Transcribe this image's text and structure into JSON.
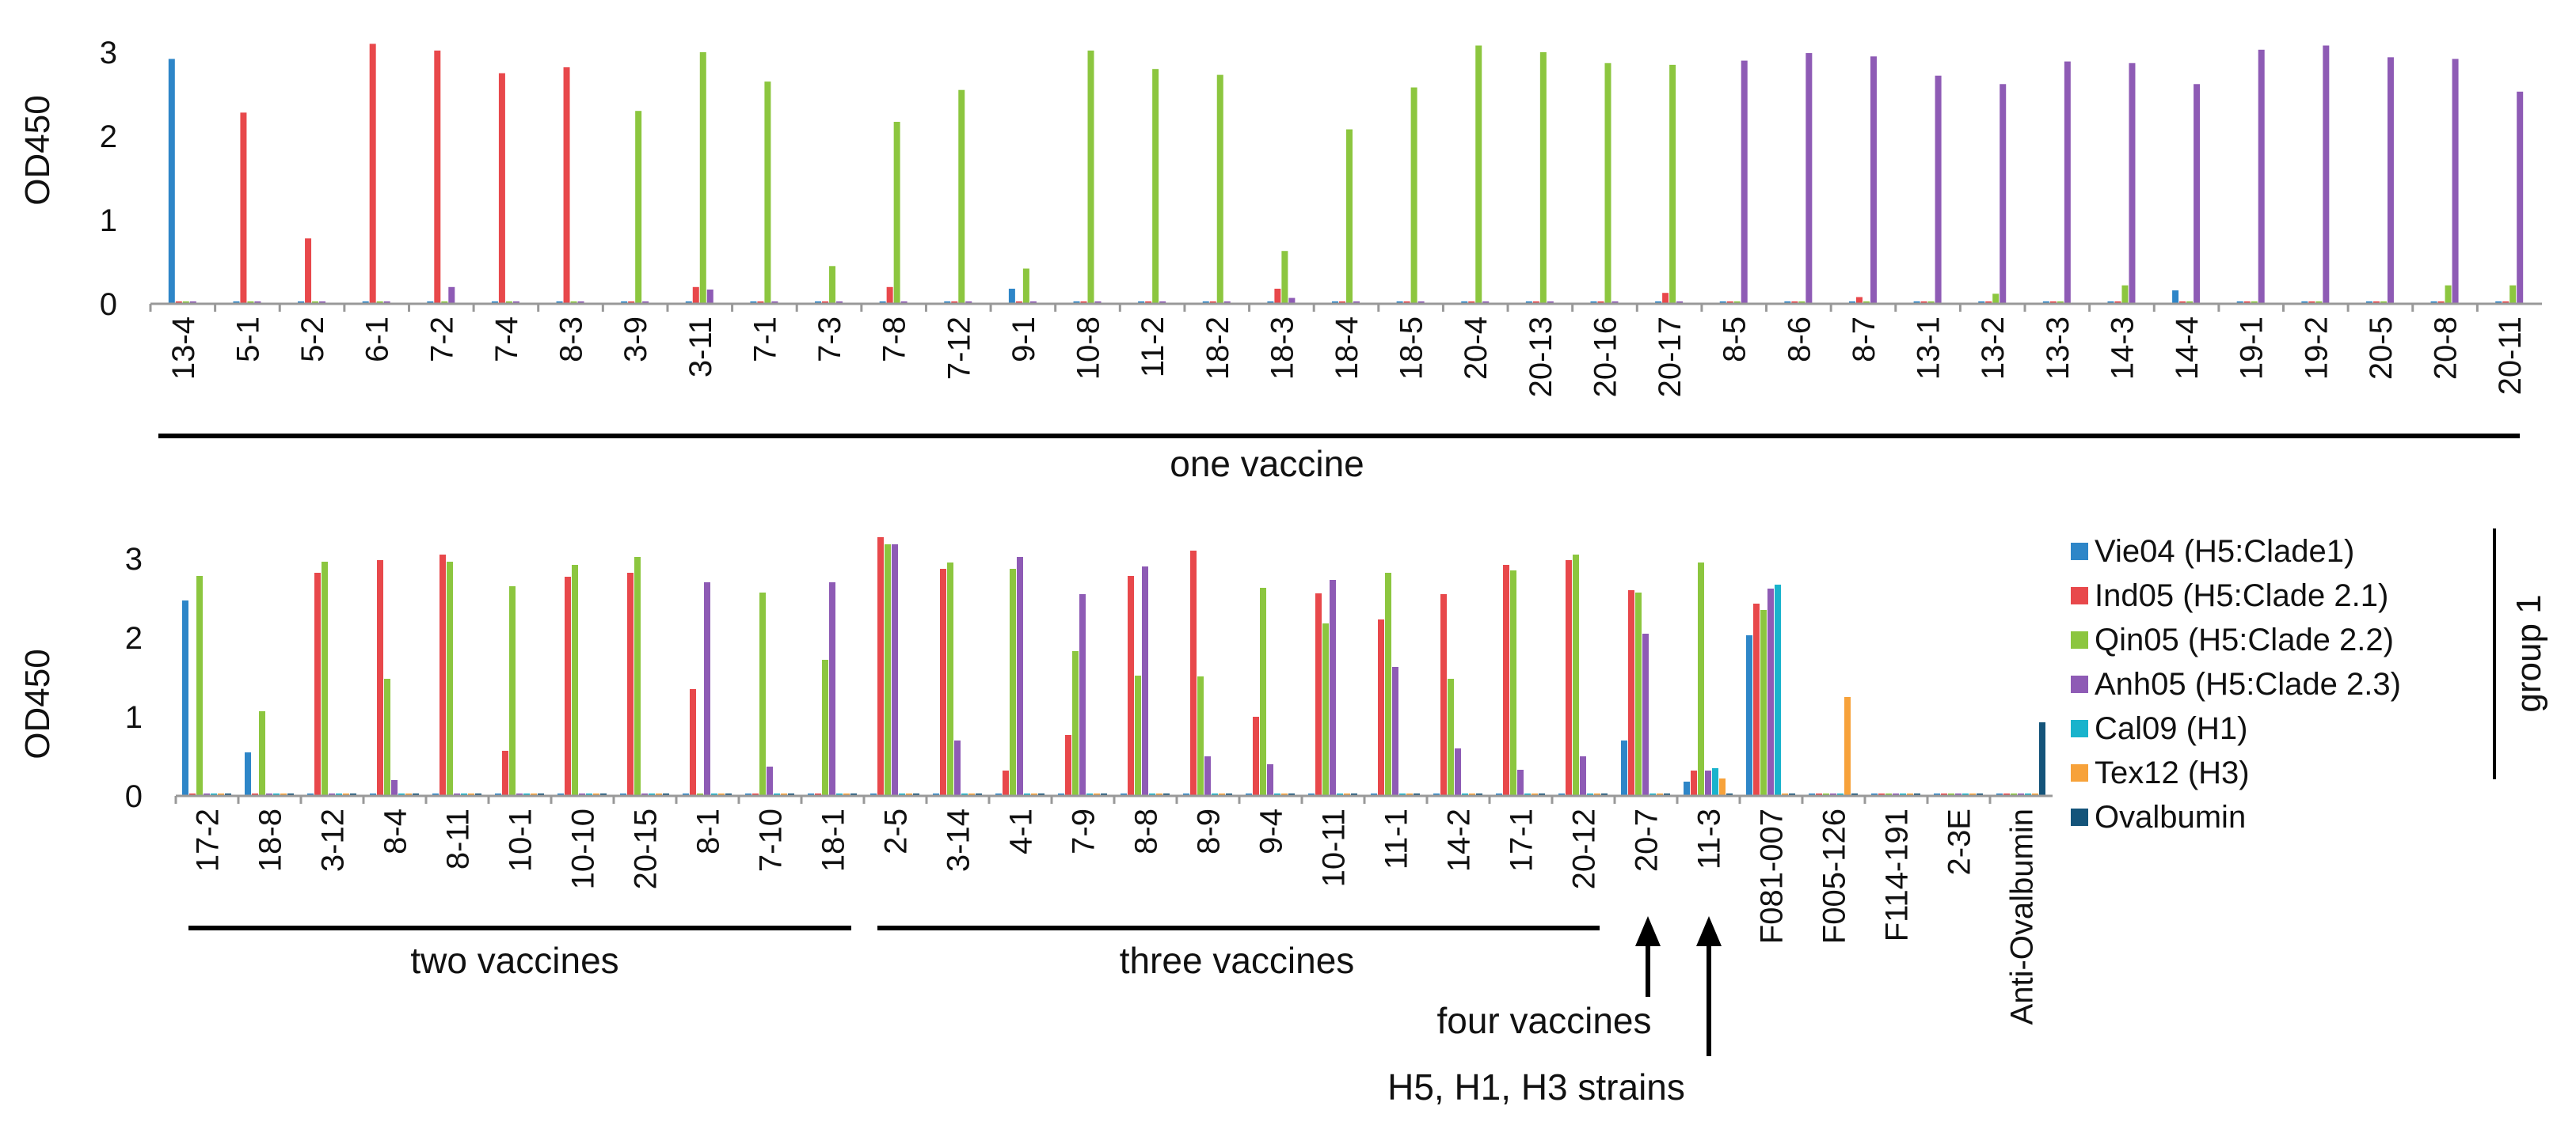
{
  "colors": {
    "Vie04": "#2e86c8",
    "Ind05": "#e8484b",
    "Qin05": "#8cc63f",
    "Anh05": "#8e5bb5",
    "Cal09": "#19b3cc",
    "Tex12": "#f7a23a",
    "Ovalbumin": "#14547a"
  },
  "annotations": {
    "four_vaccines": "four vaccines",
    "strains": "H5, H1, H3 strains",
    "group1": "group 1"
  },
  "chart_data": [
    {
      "type": "bar",
      "title": "",
      "xlabel": "",
      "ylabel": "OD450",
      "ylim": [
        0,
        3.3
      ],
      "yticks": [
        0,
        1,
        2,
        3
      ],
      "categories": [
        "13-4",
        "5-1",
        "5-2",
        "6-1",
        "7-2",
        "7-4",
        "8-3",
        "3-9",
        "3-11",
        "7-1",
        "7-3",
        "7-8",
        "7-12",
        "9-1",
        "10-8",
        "11-2",
        "18-2",
        "18-3",
        "18-4",
        "18-5",
        "20-4",
        "20-13",
        "20-16",
        "20-17",
        "8-5",
        "8-6",
        "8-7",
        "13-1",
        "13-2",
        "13-3",
        "14-3",
        "14-4",
        "19-1",
        "19-2",
        "20-5",
        "20-8",
        "20-11"
      ],
      "series": [
        {
          "name": "Vie04 (H5:Clade1)",
          "key": "Vie04",
          "values": [
            2.92,
            0,
            0,
            0,
            0,
            0,
            0,
            0,
            0,
            0,
            0,
            0,
            0,
            0.18,
            0,
            0,
            0,
            0,
            0,
            0,
            0,
            0,
            0,
            0,
            0,
            0,
            0,
            0,
            0,
            0,
            0,
            0.16,
            0,
            0,
            0,
            0,
            0
          ]
        },
        {
          "name": "Ind05 (H5:Clade 2.1)",
          "key": "Ind05",
          "values": [
            0,
            2.28,
            0.78,
            3.1,
            3.02,
            2.75,
            2.82,
            0,
            0.2,
            0,
            0,
            0.2,
            0,
            0,
            0,
            0,
            0,
            0.18,
            0,
            0,
            0,
            0,
            0,
            0.13,
            0,
            0,
            0.08,
            0,
            0,
            0,
            0,
            0,
            0,
            0,
            0,
            0,
            0
          ]
        },
        {
          "name": "Qin05 (H5:Clade 2.2)",
          "key": "Qin05",
          "values": [
            0,
            0,
            0,
            0,
            0,
            0,
            0,
            2.3,
            3.0,
            2.65,
            0.45,
            2.17,
            2.55,
            0.42,
            3.02,
            2.8,
            2.73,
            0.63,
            2.08,
            2.58,
            3.08,
            3.0,
            2.87,
            2.85,
            0,
            0,
            0,
            0,
            0.12,
            0,
            0.22,
            0,
            0,
            0,
            0,
            0.22,
            0.22
          ]
        },
        {
          "name": "Anh05 (H5:Clade 2.3)",
          "key": "Anh05",
          "values": [
            0,
            0,
            0,
            0,
            0.2,
            0,
            0,
            0,
            0.17,
            0,
            0,
            0,
            0,
            0,
            0,
            0,
            0,
            0.07,
            0,
            0,
            0,
            0,
            0,
            0,
            2.9,
            2.99,
            2.95,
            2.72,
            2.62,
            2.89,
            2.87,
            2.62,
            3.03,
            3.08,
            2.94,
            2.92,
            2.53
          ]
        }
      ],
      "bracket_label": "one vaccine"
    },
    {
      "type": "bar",
      "title": "",
      "xlabel": "",
      "ylabel": "OD450",
      "ylim": [
        0,
        3.4
      ],
      "yticks": [
        0,
        1,
        2,
        3
      ],
      "categories": [
        "17-2",
        "18-8",
        "3-12",
        "8-4",
        "8-11",
        "10-1",
        "10-10",
        "20-15",
        "8-1",
        "7-10",
        "18-1",
        "2-5",
        "3-14",
        "4-1",
        "7-9",
        "8-8",
        "8-9",
        "9-4",
        "10-11",
        "11-1",
        "14-2",
        "17-1",
        "20-12",
        "20-7",
        "11-3",
        "F081-007",
        "F005-126",
        "F114-191",
        "2-3E",
        "Anti-Ovalbumin"
      ],
      "series": [
        {
          "name": "Vie04 (H5:Clade1)",
          "key": "Vie04",
          "values": [
            2.47,
            0.55,
            0,
            0,
            0,
            0,
            0,
            0,
            0,
            0,
            0,
            0,
            0,
            0,
            0,
            0,
            0,
            0,
            0,
            0,
            0,
            0,
            0,
            0.7,
            0.18,
            2.03,
            0,
            0,
            0,
            0
          ]
        },
        {
          "name": "Ind05 (H5:Clade 2.1)",
          "key": "Ind05",
          "values": [
            0,
            0,
            2.82,
            2.98,
            3.05,
            0.57,
            2.77,
            2.82,
            1.35,
            0,
            0,
            3.27,
            2.87,
            0.32,
            0.77,
            2.78,
            3.1,
            1.0,
            2.56,
            2.23,
            2.55,
            2.92,
            2.98,
            2.6,
            0.32,
            2.43,
            0,
            0,
            0,
            0
          ]
        },
        {
          "name": "Qin05 (H5:Clade 2.2)",
          "key": "Qin05",
          "values": [
            2.78,
            1.07,
            2.96,
            1.48,
            2.96,
            2.65,
            2.92,
            3.02,
            0,
            2.57,
            1.72,
            3.18,
            2.95,
            2.87,
            1.83,
            1.52,
            1.51,
            2.63,
            2.18,
            2.82,
            1.48,
            2.85,
            3.05,
            2.57,
            2.95,
            2.35,
            0,
            0,
            0,
            0
          ]
        },
        {
          "name": "Anh05 (H5:Clade 2.3)",
          "key": "Anh05",
          "values": [
            0,
            0,
            0,
            0.2,
            0,
            0,
            0,
            0,
            2.7,
            0.37,
            2.7,
            3.18,
            0.7,
            3.02,
            2.55,
            2.9,
            0.5,
            0.4,
            2.73,
            1.63,
            0.6,
            0.33,
            0.5,
            2.05,
            0.32,
            2.62,
            0,
            0,
            0,
            0
          ]
        },
        {
          "name": "Cal09 (H1)",
          "key": "Cal09",
          "values": [
            0,
            0,
            0,
            0,
            0,
            0,
            0,
            0,
            0,
            0,
            0,
            0,
            0,
            0,
            0,
            0,
            0,
            0,
            0,
            0,
            0,
            0,
            0,
            0,
            0.35,
            2.67,
            0,
            0,
            0,
            0
          ]
        },
        {
          "name": "Tex12 (H3)",
          "key": "Tex12",
          "values": [
            0,
            0,
            0,
            0,
            0,
            0,
            0,
            0,
            0,
            0,
            0,
            0,
            0,
            0,
            0,
            0,
            0,
            0,
            0,
            0,
            0,
            0,
            0,
            0,
            0.22,
            0,
            1.25,
            0,
            0,
            0
          ]
        },
        {
          "name": "Ovalbumin",
          "key": "Ovalbumin",
          "values": [
            0,
            0,
            0,
            0,
            0,
            0,
            0,
            0,
            0,
            0,
            0,
            0,
            0,
            0,
            0,
            0,
            0,
            0,
            0,
            0,
            0,
            0,
            0,
            0,
            0,
            0,
            0,
            0,
            0,
            0.93
          ]
        }
      ],
      "legend": [
        {
          "label": "Vie04 (H5:Clade1)",
          "key": "Vie04"
        },
        {
          "label": "Ind05 (H5:Clade 2.1)",
          "key": "Ind05"
        },
        {
          "label": "Qin05 (H5:Clade 2.2)",
          "key": "Qin05"
        },
        {
          "label": "Anh05 (H5:Clade 2.3)",
          "key": "Anh05"
        },
        {
          "label": "Cal09 (H1)",
          "key": "Cal09"
        },
        {
          "label": "Tex12 (H3)",
          "key": "Tex12"
        },
        {
          "label": "Ovalbumin",
          "key": "Ovalbumin"
        }
      ],
      "brackets": [
        "two vaccines",
        "three vaccines"
      ]
    }
  ]
}
